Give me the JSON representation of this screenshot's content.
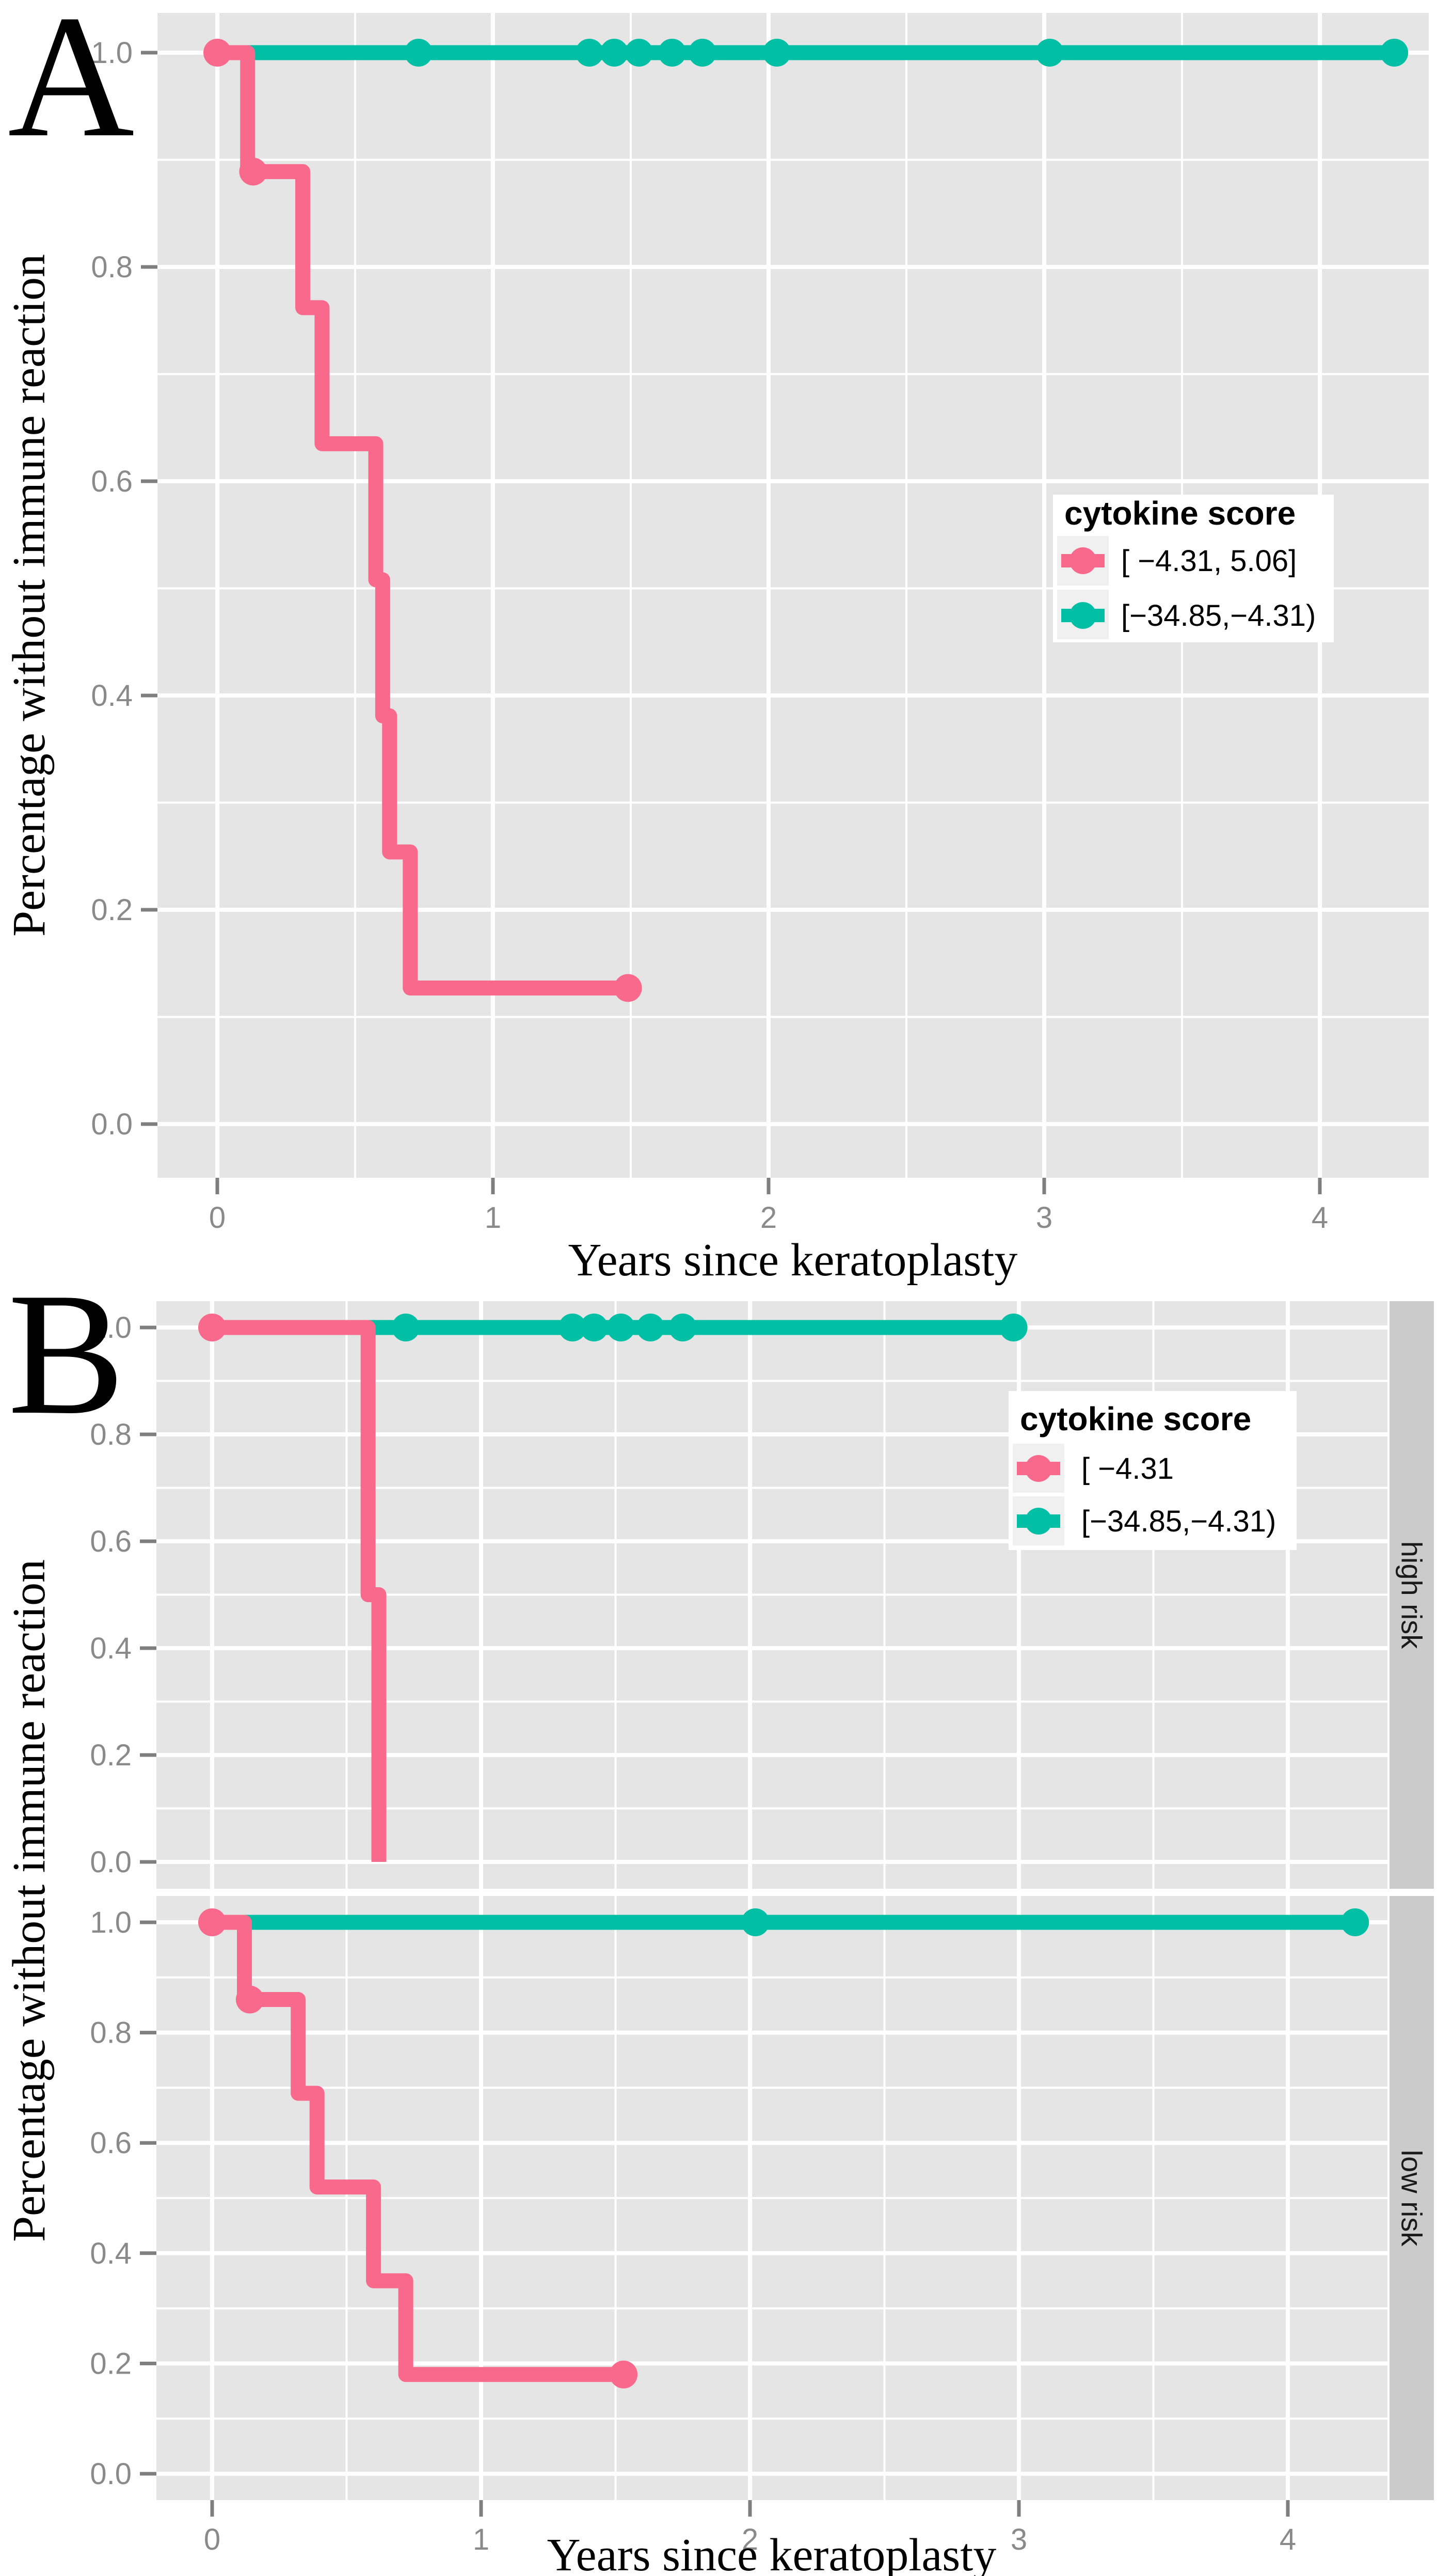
{
  "figure": {
    "colors": {
      "pink": "#F9698C",
      "teal": "#00BFA4",
      "panel_bg": "#E5E5E5",
      "grid": "#FFFFFF",
      "tick_mark": "#7F7F7F",
      "tick_text": "#8A8A8A",
      "axis_text": "#000000",
      "strip_bg": "#CBCBCB",
      "strip_text": "#1A1A1A",
      "legend_bg": "#FFFFFF",
      "legend_key_bg": "#F0F0F0",
      "legend_text": "#000000"
    }
  },
  "chart_data": {
    "type": "line",
    "subtype": "kaplan-meier-step-survival",
    "xlabel": "Years since keratoplasty",
    "ylabel": "Percentage without immune reaction",
    "x_ticks": [
      "0",
      "1",
      "2",
      "3",
      "4"
    ],
    "y_ticks": [
      "1.0",
      "0.8",
      "0.6",
      "0.4",
      "0.2",
      "0.0"
    ],
    "xlim": [
      -0.22,
      4.4
    ],
    "ylim": [
      -0.05,
      1.04
    ],
    "grid": "white major (0.2 / 1yr) and minor (0.1 / 0.5yr) gridlines on gray panel",
    "legend_position": "inside-right",
    "panels": [
      {
        "letter": "A",
        "legend": {
          "title": "cytokine score",
          "items": [
            {
              "label": "[ −4.31, 5.06]",
              "color": "pink"
            },
            {
              "label": "[−34.85,−4.31)",
              "color": "teal"
            }
          ]
        },
        "facets": [
          {
            "strip": "",
            "series": [
              {
                "name": "[−34.85,−4.31)",
                "color": "teal",
                "steps": [
                  [
                    0,
                    1.0
                  ]
                ],
                "end": 4.27,
                "censors": [
                  [
                    0.73,
                    1.0
                  ],
                  [
                    1.35,
                    1.0
                  ],
                  [
                    1.44,
                    1.0
                  ],
                  [
                    1.53,
                    1.0
                  ],
                  [
                    1.65,
                    1.0
                  ],
                  [
                    1.76,
                    1.0
                  ],
                  [
                    2.03,
                    1.0
                  ],
                  [
                    3.02,
                    1.0
                  ],
                  [
                    4.27,
                    1.0
                  ]
                ]
              },
              {
                "name": "[ −4.31, 5.06]",
                "color": "pink",
                "steps": [
                  [
                    0,
                    1.0
                  ],
                  [
                    0.11,
                    0.889
                  ],
                  [
                    0.31,
                    0.762
                  ],
                  [
                    0.38,
                    0.635
                  ],
                  [
                    0.575,
                    0.508
                  ],
                  [
                    0.6,
                    0.381
                  ],
                  [
                    0.625,
                    0.254
                  ],
                  [
                    0.7,
                    0.127
                  ]
                ],
                "end": 1.49,
                "censors": [
                  [
                    0,
                    1.0
                  ],
                  [
                    0.13,
                    0.889
                  ],
                  [
                    1.49,
                    0.127
                  ]
                ]
              }
            ]
          }
        ]
      },
      {
        "letter": "B",
        "legend": {
          "title": "cytokine score",
          "items": [
            {
              "label": "[ −4.31",
              "color": "pink"
            },
            {
              "label": "[−34.85,−4.31)",
              "color": "teal"
            }
          ]
        },
        "facets": [
          {
            "strip": "high risk",
            "series": [
              {
                "name": "[−34.85,−4.31)",
                "color": "teal",
                "steps": [
                  [
                    0,
                    1.0
                  ]
                ],
                "end": 2.98,
                "censors": [
                  [
                    0.72,
                    1.0
                  ],
                  [
                    1.34,
                    1.0
                  ],
                  [
                    1.42,
                    1.0
                  ],
                  [
                    1.52,
                    1.0
                  ],
                  [
                    1.63,
                    1.0
                  ],
                  [
                    1.75,
                    1.0
                  ],
                  [
                    2.98,
                    1.0
                  ]
                ]
              },
              {
                "name": "[ −4.31",
                "color": "pink",
                "steps": [
                  [
                    0,
                    1.0
                  ],
                  [
                    0.58,
                    0.5
                  ],
                  [
                    0.62,
                    0.0
                  ]
                ],
                "end": 0.62,
                "censors": [
                  [
                    0,
                    1.0
                  ]
                ]
              }
            ]
          },
          {
            "strip": "low risk",
            "series": [
              {
                "name": "[−34.85,−4.31)",
                "color": "teal",
                "steps": [
                  [
                    0,
                    1.0
                  ]
                ],
                "end": 4.25,
                "censors": [
                  [
                    2.02,
                    1.0
                  ],
                  [
                    4.25,
                    1.0
                  ]
                ]
              },
              {
                "name": "[ −4.31",
                "color": "pink",
                "steps": [
                  [
                    0,
                    1.0
                  ],
                  [
                    0.12,
                    0.86
                  ],
                  [
                    0.32,
                    0.69
                  ],
                  [
                    0.39,
                    0.52
                  ],
                  [
                    0.6,
                    0.35
                  ],
                  [
                    0.72,
                    0.18
                  ]
                ],
                "end": 1.53,
                "censors": [
                  [
                    0,
                    1.0
                  ],
                  [
                    0.14,
                    0.86
                  ],
                  [
                    1.53,
                    0.18
                  ]
                ]
              }
            ]
          }
        ]
      }
    ]
  }
}
